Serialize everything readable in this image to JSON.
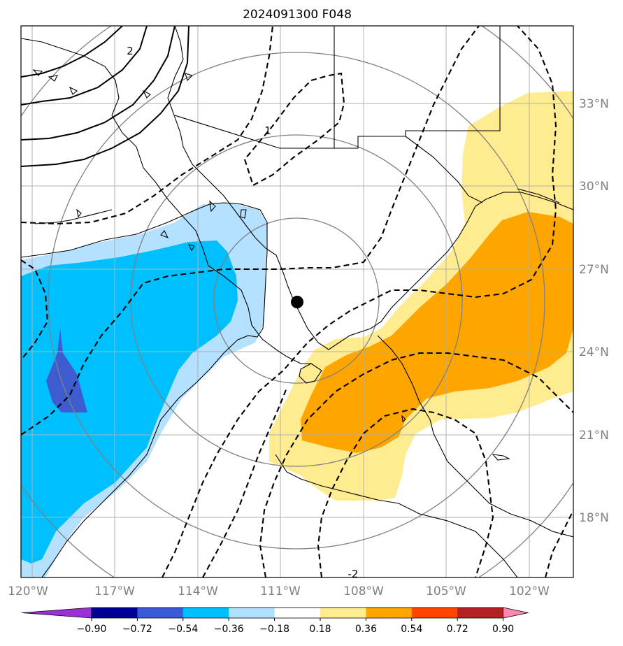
{
  "title": "2024091300 F048",
  "map": {
    "lon_labels": [
      "120°W",
      "117°W",
      "114°W",
      "111°W",
      "108°W",
      "105°W",
      "102°W"
    ],
    "lat_labels": [
      "33°N",
      "30°N",
      "27°N",
      "24°N",
      "21°N",
      "18°N"
    ],
    "contour_labels": [
      "2",
      "1",
      "-2"
    ],
    "center_marker": {
      "lon": -110.5,
      "lat": 25.8
    }
  },
  "colorbar": {
    "ticks": [
      "−0.90",
      "−0.72",
      "−0.54",
      "−0.36",
      "−0.18",
      "0.18",
      "0.36",
      "0.54",
      "0.72",
      "0.90"
    ],
    "colors": [
      "#9b30d8",
      "#000093",
      "#3a5bd3",
      "#00bfff",
      "#b0e0ff",
      "#ffffff",
      "#ffec91",
      "#ffa500",
      "#ff4500",
      "#b22222",
      "#ff88b0"
    ],
    "extend": "both"
  },
  "legend_colors": {
    "low_1": "#b3e1ff",
    "low_2": "#00bfff",
    "low_3": "#3d5cd0",
    "high_1": "#ffec91",
    "high_2": "#ffa500"
  }
}
